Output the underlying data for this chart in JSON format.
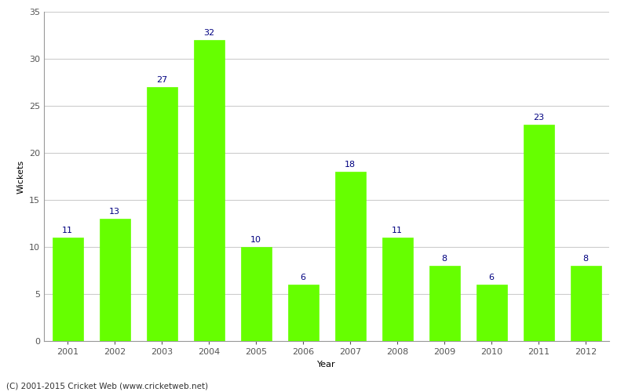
{
  "years": [
    "2001",
    "2002",
    "2003",
    "2004",
    "2005",
    "2006",
    "2007",
    "2008",
    "2009",
    "2010",
    "2011",
    "2012"
  ],
  "values": [
    11,
    13,
    27,
    32,
    10,
    6,
    18,
    11,
    8,
    6,
    23,
    8
  ],
  "bar_color": "#66ff00",
  "bar_edge_color": "#66ff00",
  "label_color": "#000080",
  "xlabel": "Year",
  "ylabel": "Wickets",
  "ylim": [
    0,
    35
  ],
  "yticks": [
    0,
    5,
    10,
    15,
    20,
    25,
    30,
    35
  ],
  "footnote": "(C) 2001-2015 Cricket Web (www.cricketweb.net)",
  "label_fontsize": 8,
  "axis_fontsize": 8,
  "ylabel_fontsize": 8,
  "xlabel_fontsize": 8,
  "background_color": "#ffffff",
  "grid_color": "#cccccc"
}
